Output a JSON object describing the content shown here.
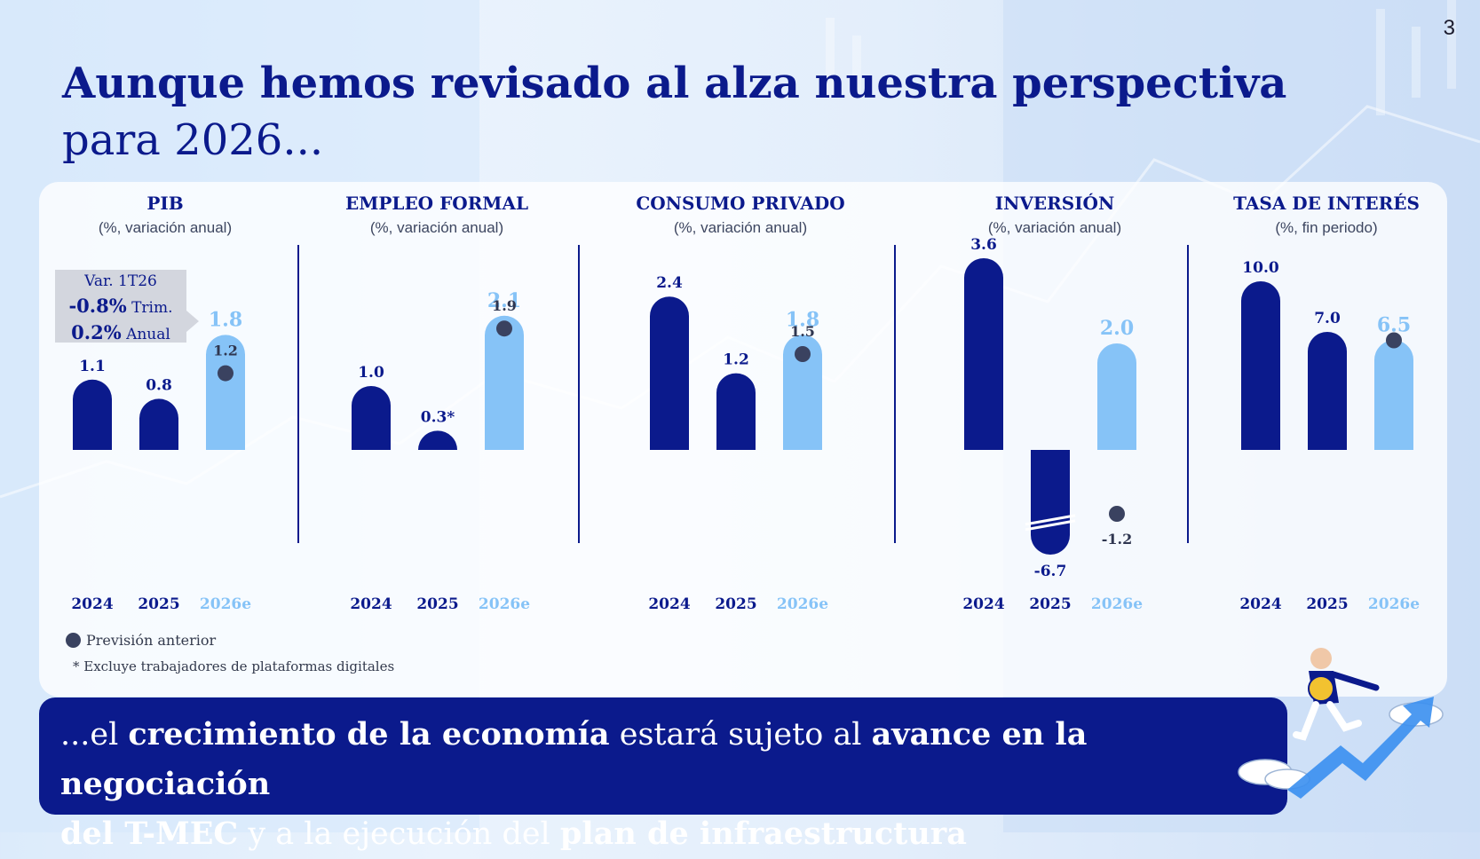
{
  "page_number": "3",
  "title": {
    "line1": "Aunque hemos revisado al alza nuestra perspectiva",
    "line2": "para 2026..."
  },
  "colors": {
    "actual": "#0b1a8c",
    "forecast": "#86c3f7",
    "previous_dot": "#3a4260",
    "label_dark": "#0b1a8c",
    "label_forecast": "#86c3f7"
  },
  "annotation": {
    "line1": "Var. 1T26",
    "line2_bold": "-0.8%",
    "line2_rest": " Trim.",
    "line3_bold": "0.2%",
    "line3_rest": " Anual"
  },
  "legend": {
    "previous": "Previsión anterior"
  },
  "footnote": "* Excluye trabajadores de plataformas digitales",
  "banner": {
    "p1": "...el ",
    "b1": "crecimiento de la economía",
    "p2": " estará sujeto al ",
    "b2": "avance en la negociación",
    "b3": "del T-MEC",
    "p3": " y a la ejecución del ",
    "b4": "plan de infraestructura"
  },
  "chart_data": [
    {
      "type": "bar",
      "title": "PIB",
      "subtitle": "(%, variación anual)",
      "categories": [
        "2024",
        "2025",
        "2026e"
      ],
      "values": [
        1.1,
        0.8,
        1.8
      ],
      "value_labels": [
        "1.1",
        "0.8",
        "1.8"
      ],
      "previous_forecast": {
        "category": "2026e",
        "value": 1.2,
        "label": "1.2"
      }
    },
    {
      "type": "bar",
      "title": "EMPLEO FORMAL",
      "subtitle": "(%, variación anual)",
      "categories": [
        "2024",
        "2025",
        "2026e"
      ],
      "values": [
        1.0,
        0.3,
        2.1
      ],
      "value_labels": [
        "1.0",
        "0.3*",
        "2.1"
      ],
      "previous_forecast": {
        "category": "2026e",
        "value": 1.9,
        "label": "1.9"
      }
    },
    {
      "type": "bar",
      "title": "CONSUMO PRIVADO",
      "subtitle": "(%, variación anual)",
      "categories": [
        "2024",
        "2025",
        "2026e"
      ],
      "values": [
        2.4,
        1.2,
        1.8
      ],
      "value_labels": [
        "2.4",
        "1.2",
        "1.8"
      ],
      "previous_forecast": {
        "category": "2026e",
        "value": 1.5,
        "label": "1.5"
      }
    },
    {
      "type": "bar",
      "title": "INVERSIÓN",
      "subtitle": "(%, variación anual)",
      "categories": [
        "2024",
        "2025",
        "2026e"
      ],
      "values": [
        3.6,
        -6.7,
        2.0
      ],
      "value_labels": [
        "3.6",
        "-6.7",
        "2.0"
      ],
      "axis_break": "2025",
      "previous_forecast": {
        "category": "2026e",
        "value": -1.2,
        "label": "-1.2"
      }
    },
    {
      "type": "bar",
      "title": "TASA DE INTERÉS",
      "subtitle": "(%, fin periodo)",
      "categories": [
        "2024",
        "2025",
        "2026e"
      ],
      "values": [
        10.0,
        7.0,
        6.5
      ],
      "value_labels": [
        "10.0",
        "7.0",
        "6.5"
      ],
      "previous_forecast": {
        "category": "2026e",
        "value": 6.5,
        "label": ""
      }
    }
  ]
}
